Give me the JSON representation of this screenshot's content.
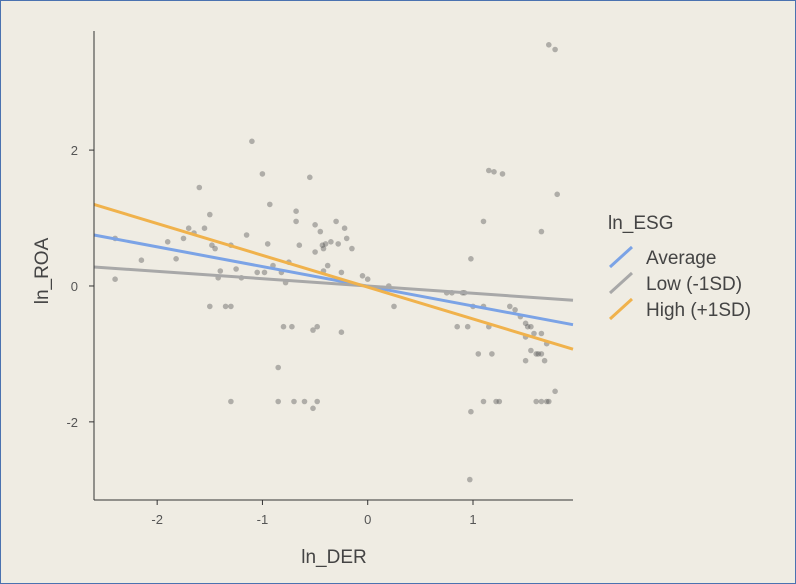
{
  "chart_data": {
    "type": "scatter",
    "title": "",
    "xlabel": "ln_DER",
    "ylabel": "ln_ROA",
    "xlim": [
      -2.6,
      1.95
    ],
    "ylim": [
      -3.15,
      3.9
    ],
    "xticks": [
      -2,
      -1,
      0,
      1
    ],
    "yticks": [
      -2,
      0,
      2
    ],
    "legend": {
      "title": "ln_ESG",
      "placement": "right",
      "entries": [
        {
          "label": "Average",
          "color": "#7ba3e6"
        },
        {
          "label": "Low (-1SD)",
          "color": "#a8a8a8"
        },
        {
          "label": "High (+1SD)",
          "color": "#f0b24c"
        }
      ]
    },
    "lines": [
      {
        "name": "Average",
        "color": "#7ba3e6",
        "x": [
          -2.6,
          1.95
        ],
        "y": [
          0.75,
          -0.57
        ]
      },
      {
        "name": "Low (-1SD)",
        "color": "#a8a8a8",
        "x": [
          -2.6,
          1.95
        ],
        "y": [
          0.28,
          -0.21
        ]
      },
      {
        "name": "High (+1SD)",
        "color": "#f0b24c",
        "x": [
          -2.6,
          1.95
        ],
        "y": [
          1.2,
          -0.93
        ]
      }
    ],
    "points": [
      [
        -2.4,
        0.7
      ],
      [
        -2.4,
        0.1
      ],
      [
        -2.15,
        0.38
      ],
      [
        -1.9,
        0.65
      ],
      [
        -1.82,
        0.4
      ],
      [
        -1.75,
        0.7
      ],
      [
        -1.7,
        0.85
      ],
      [
        -1.65,
        0.78
      ],
      [
        -1.6,
        1.45
      ],
      [
        -1.55,
        0.85
      ],
      [
        -1.5,
        1.05
      ],
      [
        -1.48,
        0.6
      ],
      [
        -1.45,
        0.55
      ],
      [
        -1.5,
        -0.3
      ],
      [
        -1.42,
        0.12
      ],
      [
        -1.4,
        0.22
      ],
      [
        -1.35,
        -0.3
      ],
      [
        -1.3,
        -0.3
      ],
      [
        -1.3,
        0.6
      ],
      [
        -1.25,
        0.25
      ],
      [
        -1.2,
        0.12
      ],
      [
        -1.15,
        0.75
      ],
      [
        -1.3,
        -1.7
      ],
      [
        -1.1,
        2.13
      ],
      [
        -1.05,
        0.2
      ],
      [
        -1.0,
        1.65
      ],
      [
        -0.98,
        0.2
      ],
      [
        -0.95,
        0.62
      ],
      [
        -0.93,
        1.2
      ],
      [
        -0.9,
        0.3
      ],
      [
        -0.82,
        0.2
      ],
      [
        -0.78,
        0.05
      ],
      [
        -0.75,
        0.35
      ],
      [
        -0.8,
        -0.6
      ],
      [
        -0.72,
        -0.6
      ],
      [
        -0.85,
        -1.2
      ],
      [
        -0.85,
        -1.7
      ],
      [
        -0.7,
        -1.7
      ],
      [
        -0.68,
        1.1
      ],
      [
        -0.68,
        0.95
      ],
      [
        -0.65,
        0.6
      ],
      [
        -0.6,
        -1.7
      ],
      [
        -0.55,
        1.6
      ],
      [
        -0.52,
        -0.65
      ],
      [
        -0.5,
        0.9
      ],
      [
        -0.5,
        0.5
      ],
      [
        -0.48,
        -0.6
      ],
      [
        -0.45,
        0.8
      ],
      [
        -0.43,
        0.6
      ],
      [
        -0.42,
        0.55
      ],
      [
        -0.4,
        0.62
      ],
      [
        -0.38,
        0.3
      ],
      [
        -0.42,
        0.22
      ],
      [
        -0.35,
        0.65
      ],
      [
        -0.3,
        0.95
      ],
      [
        -0.28,
        0.62
      ],
      [
        -0.25,
        0.2
      ],
      [
        -0.22,
        0.85
      ],
      [
        -0.2,
        0.7
      ],
      [
        -0.15,
        0.55
      ],
      [
        -0.25,
        -0.68
      ],
      [
        -0.52,
        -1.8
      ],
      [
        -0.48,
        -1.7
      ],
      [
        -0.05,
        0.15
      ],
      [
        0.25,
        -0.3
      ],
      [
        0.2,
        0.0
      ],
      [
        0.0,
        0.1
      ],
      [
        0.75,
        -0.1
      ],
      [
        0.8,
        -0.1
      ],
      [
        0.9,
        -0.1
      ],
      [
        0.85,
        -0.6
      ],
      [
        0.95,
        -0.6
      ],
      [
        0.92,
        -0.1
      ],
      [
        1.0,
        -0.3
      ],
      [
        1.05,
        -1.0
      ],
      [
        1.1,
        -0.3
      ],
      [
        0.98,
        0.4
      ],
      [
        1.1,
        0.95
      ],
      [
        1.15,
        1.7
      ],
      [
        1.2,
        1.68
      ],
      [
        1.28,
        1.65
      ],
      [
        1.15,
        -0.6
      ],
      [
        1.18,
        -1.0
      ],
      [
        1.1,
        -1.7
      ],
      [
        1.22,
        -1.7
      ],
      [
        1.25,
        -1.7
      ],
      [
        0.98,
        -1.85
      ],
      [
        0.97,
        -2.85
      ],
      [
        1.35,
        -0.3
      ],
      [
        1.4,
        -0.35
      ],
      [
        1.45,
        -0.45
      ],
      [
        1.5,
        -0.55
      ],
      [
        1.52,
        -0.6
      ],
      [
        1.55,
        -0.6
      ],
      [
        1.5,
        -0.75
      ],
      [
        1.58,
        -0.7
      ],
      [
        1.55,
        -0.95
      ],
      [
        1.6,
        -1.0
      ],
      [
        1.62,
        -1.0
      ],
      [
        1.65,
        -1.0
      ],
      [
        1.65,
        -0.7
      ],
      [
        1.7,
        -0.85
      ],
      [
        1.68,
        -1.1
      ],
      [
        1.65,
        -1.7
      ],
      [
        1.7,
        -1.7
      ],
      [
        1.72,
        -1.7
      ],
      [
        1.78,
        -1.55
      ],
      [
        1.5,
        -1.1
      ],
      [
        1.65,
        0.8
      ],
      [
        1.72,
        3.55
      ],
      [
        1.78,
        3.48
      ],
      [
        1.8,
        1.35
      ],
      [
        1.6,
        -1.7
      ]
    ]
  }
}
